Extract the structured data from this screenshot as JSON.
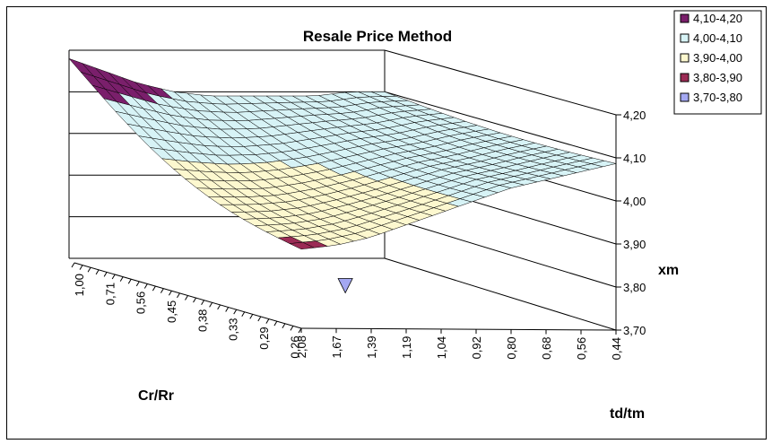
{
  "chart_data": {
    "type": "surface",
    "title": "Resale Price Method",
    "z_label": "xm",
    "x_label": "td/tm",
    "y_label": "Cr/Rr",
    "z_ticks": [
      "3,70",
      "3,80",
      "3,90",
      "4,00",
      "4,10",
      "4,20"
    ],
    "zlim": [
      3.7,
      4.2
    ],
    "x_ticks": [
      "2,08",
      "1,67",
      "1,39",
      "1,19",
      "1,04",
      "0,92",
      "0,80",
      "0,68",
      "0,56",
      "0,44"
    ],
    "y_ticks": [
      "1,00",
      "0,71",
      "0,56",
      "0,45",
      "0,38",
      "0,33",
      "0,29",
      "0,26"
    ],
    "legend": [
      {
        "label": "4,10-4,20",
        "color": "#7a1f6b"
      },
      {
        "label": "4,00-4,10",
        "color": "#d7f3f6"
      },
      {
        "label": "3,90-4,00",
        "color": "#fdf8cf"
      },
      {
        "label": "3,80-3,90",
        "color": "#9b2b55"
      },
      {
        "label": "3,70-3,80",
        "color": "#a4a8f2"
      }
    ],
    "grid": true,
    "legend_position": "right",
    "approx_surface": {
      "back_edge_xm_at_td_tm": [
        4.18,
        4.15,
        4.12,
        4.1,
        4.09,
        4.09,
        4.09,
        4.09,
        4.1,
        4.1
      ],
      "front_edge_xm_at_td_tm": [
        3.89,
        3.9,
        3.92,
        3.95,
        3.98,
        4.01,
        4.04,
        4.06,
        4.08,
        4.1
      ],
      "min_xm_point": 3.79
    }
  }
}
